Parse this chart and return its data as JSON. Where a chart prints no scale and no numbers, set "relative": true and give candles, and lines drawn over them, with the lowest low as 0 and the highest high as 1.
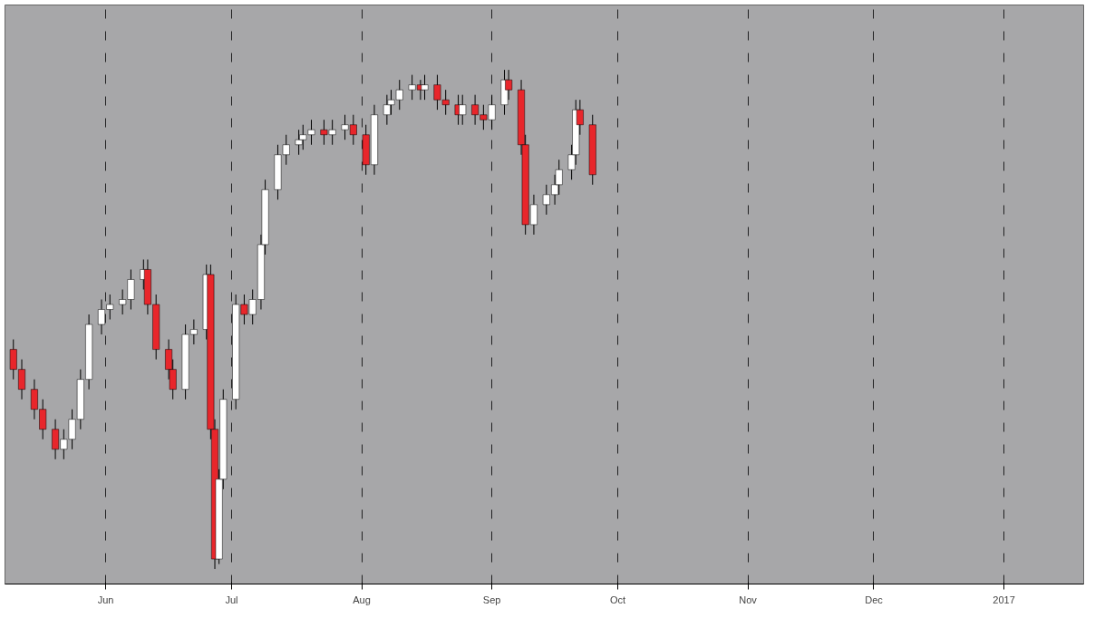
{
  "chart_data": {
    "type": "candlestick",
    "relative": true,
    "grid": "x",
    "x": [
      "2016-05-10",
      "2016-05-12",
      "2016-05-15",
      "2016-05-17",
      "2016-05-20",
      "2016-05-22",
      "2016-05-24",
      "2016-05-26",
      "2016-05-28",
      "2016-05-31",
      "2016-06-02",
      "2016-06-05",
      "2016-06-07",
      "2016-06-10",
      "2016-06-11",
      "2016-06-13",
      "2016-06-16",
      "2016-06-17",
      "2016-06-20",
      "2016-06-22",
      "2016-06-25",
      "2016-06-26",
      "2016-06-27",
      "2016-06-28",
      "2016-06-29",
      "2016-07-02",
      "2016-07-04",
      "2016-07-06",
      "2016-07-08",
      "2016-07-09",
      "2016-07-12",
      "2016-07-14",
      "2016-07-17",
      "2016-07-18",
      "2016-07-20",
      "2016-07-23",
      "2016-07-25",
      "2016-07-28",
      "2016-07-30",
      "2016-08-02",
      "2016-08-04",
      "2016-08-07",
      "2016-08-08",
      "2016-08-10",
      "2016-08-13",
      "2016-08-15",
      "2016-08-16",
      "2016-08-19",
      "2016-08-21",
      "2016-08-24",
      "2016-08-25",
      "2016-08-28",
      "2016-08-30",
      "2016-09-01",
      "2016-09-04",
      "2016-09-05",
      "2016-09-08",
      "2016-09-09",
      "2016-09-11",
      "2016-09-14",
      "2016-09-16",
      "2016-09-17",
      "2016-09-20",
      "2016-09-21",
      "2016-09-22",
      "2016-09-25"
    ],
    "ohlc": [
      [
        0.44,
        0.46,
        0.38,
        0.4
      ],
      [
        0.4,
        0.42,
        0.34,
        0.36
      ],
      [
        0.36,
        0.38,
        0.3,
        0.32
      ],
      [
        0.32,
        0.34,
        0.26,
        0.28
      ],
      [
        0.28,
        0.3,
        0.22,
        0.24
      ],
      [
        0.24,
        0.28,
        0.22,
        0.26
      ],
      [
        0.26,
        0.32,
        0.24,
        0.3
      ],
      [
        0.3,
        0.4,
        0.28,
        0.38
      ],
      [
        0.38,
        0.51,
        0.36,
        0.49
      ],
      [
        0.49,
        0.54,
        0.47,
        0.52
      ],
      [
        0.52,
        0.55,
        0.5,
        0.53
      ],
      [
        0.53,
        0.56,
        0.51,
        0.54
      ],
      [
        0.54,
        0.6,
        0.52,
        0.58
      ],
      [
        0.58,
        0.62,
        0.56,
        0.6
      ],
      [
        0.6,
        0.62,
        0.51,
        0.53
      ],
      [
        0.53,
        0.55,
        0.42,
        0.44
      ],
      [
        0.44,
        0.46,
        0.38,
        0.4
      ],
      [
        0.4,
        0.42,
        0.34,
        0.36
      ],
      [
        0.36,
        0.49,
        0.34,
        0.47
      ],
      [
        0.47,
        0.5,
        0.45,
        0.48
      ],
      [
        0.48,
        0.61,
        0.46,
        0.59
      ],
      [
        0.59,
        0.61,
        0.26,
        0.28
      ],
      [
        0.28,
        0.3,
        0,
        0.02
      ],
      [
        0.02,
        0.2,
        0.01,
        0.18
      ],
      [
        0.18,
        0.36,
        0.16,
        0.34
      ],
      [
        0.34,
        0.55,
        0.32,
        0.53
      ],
      [
        0.53,
        0.55,
        0.49,
        0.51
      ],
      [
        0.51,
        0.56,
        0.49,
        0.54
      ],
      [
        0.54,
        0.67,
        0.52,
        0.65
      ],
      [
        0.65,
        0.78,
        0.63,
        0.76
      ],
      [
        0.76,
        0.85,
        0.74,
        0.83
      ],
      [
        0.83,
        0.87,
        0.81,
        0.85
      ],
      [
        0.85,
        0.88,
        0.83,
        0.86
      ],
      [
        0.86,
        0.89,
        0.84,
        0.87
      ],
      [
        0.87,
        0.9,
        0.85,
        0.88
      ],
      [
        0.88,
        0.9,
        0.85,
        0.87
      ],
      [
        0.87,
        0.9,
        0.85,
        0.88
      ],
      [
        0.88,
        0.91,
        0.86,
        0.89
      ],
      [
        0.89,
        0.91,
        0.85,
        0.87
      ],
      [
        0.87,
        0.89,
        0.79,
        0.81
      ],
      [
        0.81,
        0.93,
        0.79,
        0.91
      ],
      [
        0.91,
        0.95,
        0.89,
        0.93
      ],
      [
        0.93,
        0.96,
        0.91,
        0.94
      ],
      [
        0.94,
        0.98,
        0.92,
        0.96
      ],
      [
        0.96,
        0.99,
        0.94,
        0.97
      ],
      [
        0.97,
        0.98,
        0.94,
        0.96
      ],
      [
        0.96,
        0.99,
        0.94,
        0.97
      ],
      [
        0.97,
        0.99,
        0.92,
        0.94
      ],
      [
        0.94,
        0.96,
        0.91,
        0.93
      ],
      [
        0.93,
        0.95,
        0.89,
        0.91
      ],
      [
        0.91,
        0.95,
        0.89,
        0.93
      ],
      [
        0.93,
        0.95,
        0.89,
        0.91
      ],
      [
        0.91,
        0.93,
        0.88,
        0.9
      ],
      [
        0.9,
        0.95,
        0.88,
        0.93
      ],
      [
        0.93,
        1,
        0.91,
        0.98
      ],
      [
        0.98,
        1,
        0.94,
        0.96
      ],
      [
        0.96,
        0.98,
        0.83,
        0.85
      ],
      [
        0.85,
        0.87,
        0.67,
        0.69
      ],
      [
        0.69,
        0.75,
        0.67,
        0.73
      ],
      [
        0.73,
        0.77,
        0.71,
        0.75
      ],
      [
        0.75,
        0.79,
        0.73,
        0.77
      ],
      [
        0.77,
        0.82,
        0.75,
        0.8
      ],
      [
        0.8,
        0.85,
        0.78,
        0.83
      ],
      [
        0.83,
        0.94,
        0.81,
        0.92
      ],
      [
        0.92,
        0.94,
        0.87,
        0.89
      ],
      [
        0.89,
        0.91,
        0.77,
        0.79
      ]
    ],
    "colors": [
      "#e8262b",
      "#e8262b",
      "#e8262b",
      "#e8262b",
      "#e8262b",
      "#ffffff",
      "#ffffff",
      "#ffffff",
      "#ffffff",
      "#ffffff",
      "#ffffff",
      "#ffffff",
      "#ffffff",
      "#ffffff",
      "#e8262b",
      "#e8262b",
      "#e8262b",
      "#e8262b",
      "#ffffff",
      "#ffffff",
      "#ffffff",
      "#e8262b",
      "#e8262b",
      "#ffffff",
      "#ffffff",
      "#ffffff",
      "#e8262b",
      "#ffffff",
      "#ffffff",
      "#ffffff",
      "#ffffff",
      "#ffffff",
      "#ffffff",
      "#ffffff",
      "#ffffff",
      "#e8262b",
      "#ffffff",
      "#ffffff",
      "#e8262b",
      "#e8262b",
      "#ffffff",
      "#ffffff",
      "#ffffff",
      "#ffffff",
      "#ffffff",
      "#e8262b",
      "#ffffff",
      "#e8262b",
      "#e8262b",
      "#e8262b",
      "#ffffff",
      "#e8262b",
      "#e8262b",
      "#ffffff",
      "#ffffff",
      "#e8262b",
      "#e8262b",
      "#e8262b",
      "#ffffff",
      "#ffffff",
      "#ffffff",
      "#ffffff",
      "#ffffff",
      "#ffffff",
      "#e8262b",
      "#e8262b"
    ],
    "xlim": [
      "2016-05-08",
      "2017-01-20"
    ],
    "xticks": [
      {
        "value": "2016-06-01",
        "label": "Jun"
      },
      {
        "value": "2016-07-01",
        "label": "Jul"
      },
      {
        "value": "2016-08-01",
        "label": "Aug"
      },
      {
        "value": "2016-09-01",
        "label": "Sep"
      },
      {
        "value": "2016-10-01",
        "label": "Oct"
      },
      {
        "value": "2016-11-01",
        "label": "Nov"
      },
      {
        "value": "2016-12-01",
        "label": "Dec"
      },
      "2017"
    ]
  }
}
